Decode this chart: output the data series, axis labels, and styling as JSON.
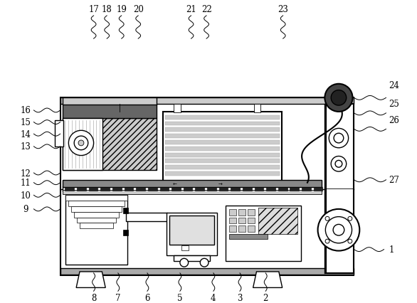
{
  "bg_color": "#ffffff",
  "line_color": "#000000",
  "top_labels": [
    [
      "17",
      128,
      55,
      128,
      22
    ],
    [
      "18",
      147,
      55,
      147,
      22
    ],
    [
      "19",
      168,
      55,
      168,
      22
    ],
    [
      "20",
      192,
      55,
      192,
      22
    ],
    [
      "21",
      268,
      55,
      268,
      22
    ],
    [
      "22",
      290,
      55,
      290,
      22
    ],
    [
      "23",
      400,
      55,
      400,
      22
    ]
  ],
  "left_labels": [
    [
      "16",
      80,
      158,
      42,
      158
    ],
    [
      "15",
      80,
      175,
      42,
      175
    ],
    [
      "14",
      80,
      192,
      42,
      192
    ],
    [
      "13",
      80,
      210,
      42,
      210
    ],
    [
      "12",
      80,
      248,
      42,
      248
    ],
    [
      "11",
      80,
      262,
      42,
      262
    ],
    [
      "10",
      80,
      280,
      42,
      280
    ],
    [
      "9",
      80,
      300,
      42,
      300
    ]
  ],
  "bottom_labels": [
    [
      "8",
      128,
      392,
      128,
      418
    ],
    [
      "7",
      163,
      392,
      163,
      418
    ],
    [
      "6",
      205,
      392,
      205,
      418
    ],
    [
      "5",
      252,
      392,
      252,
      418
    ],
    [
      "4",
      300,
      392,
      300,
      418
    ],
    [
      "3",
      338,
      392,
      338,
      418
    ],
    [
      "2",
      375,
      392,
      375,
      418
    ]
  ],
  "right_labels": [
    [
      "1",
      502,
      358,
      545,
      358
    ],
    [
      "24",
      502,
      140,
      548,
      122
    ],
    [
      "25",
      502,
      162,
      548,
      148
    ],
    [
      "26",
      502,
      185,
      548,
      172
    ],
    [
      "27",
      502,
      258,
      548,
      258
    ]
  ]
}
